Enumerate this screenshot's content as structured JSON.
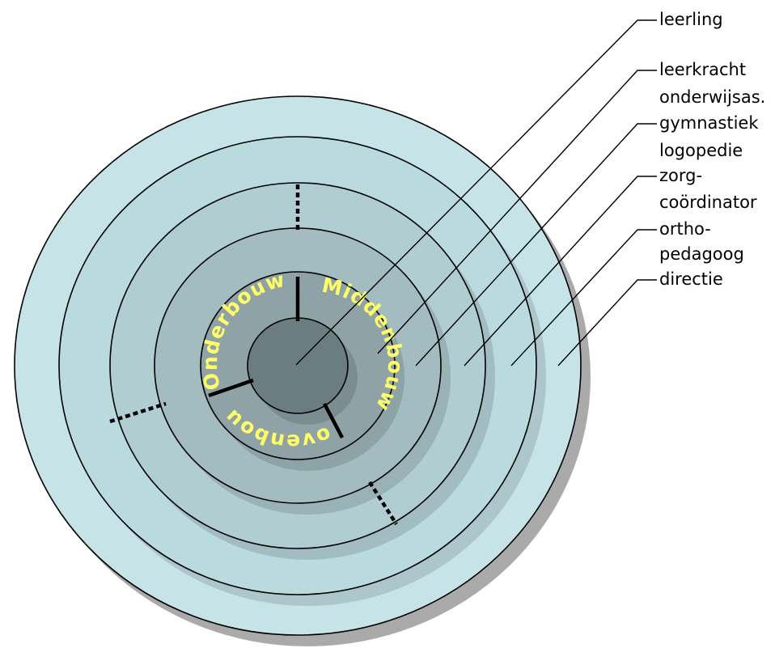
{
  "rings": [
    {
      "id": "directie",
      "color": "#c6e4e8"
    },
    {
      "id": "ortho-pedagoog",
      "color": "#b9dadf"
    },
    {
      "id": "zorg-coordinator",
      "color": "#b0cdd2"
    },
    {
      "id": "gymnastiek-logopedie",
      "color": "#a3bcbf"
    },
    {
      "id": "leerkracht-onderwijsas",
      "color": "#8fa3a7"
    },
    {
      "id": "leerling",
      "color": "#6b7d80"
    }
  ],
  "shadow_color": "#aaaaaa",
  "sections": {
    "onderbouw": "Onderbouw",
    "middenbouw": "Middenbouw",
    "bovenbouw": "Bovenbouw",
    "text_color": "#ffff66"
  },
  "labels": [
    {
      "id": "leerling",
      "lines": [
        "leerling"
      ]
    },
    {
      "id": "leerkracht",
      "lines": [
        "leerkracht",
        "onderwijsas."
      ]
    },
    {
      "id": "gymnastiek",
      "lines": [
        "gymnastiek",
        "logopedie"
      ]
    },
    {
      "id": "zorg",
      "lines": [
        "zorg-",
        "coördinator"
      ]
    },
    {
      "id": "ortho",
      "lines": [
        "ortho-",
        "pedagoog"
      ]
    },
    {
      "id": "directie",
      "lines": [
        "directie"
      ]
    }
  ]
}
